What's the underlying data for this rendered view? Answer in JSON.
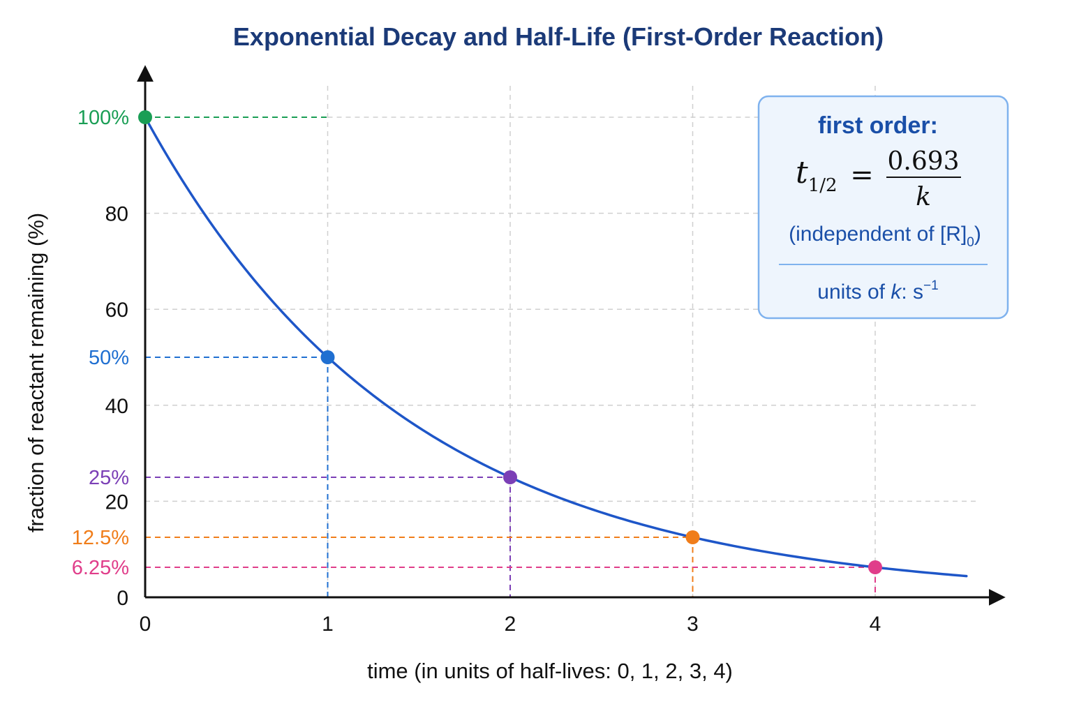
{
  "chart_data": {
    "type": "line",
    "title": "Exponential Decay and Half-Life (First-Order Reaction)",
    "xlabel": "time (in units of half-lives: 0, 1, 2, 3, 4)",
    "ylabel": "fraction of reactant remaining (%)",
    "xlim": [
      0,
      4.5
    ],
    "ylim": [
      0,
      110
    ],
    "x_ticks": [
      0,
      1,
      2,
      3,
      4
    ],
    "x_tick_labels": [
      "0",
      "1",
      "2",
      "3",
      "4"
    ],
    "y_ticks": [
      0,
      20,
      40,
      60,
      80
    ],
    "y_tick_labels": [
      "0",
      "20",
      "40",
      "60",
      "80"
    ],
    "grid": true,
    "series": [
      {
        "color": "#1e56c8",
        "x": [
          0,
          0.5,
          1,
          1.5,
          2,
          2.5,
          3,
          3.5,
          4,
          4.5
        ],
        "y": [
          100,
          70.7,
          50,
          35.4,
          25,
          17.7,
          12.5,
          8.8,
          6.25,
          4.4
        ]
      }
    ],
    "highlight_points": [
      {
        "x": 0,
        "y": 100,
        "label": "100%",
        "color": "#1a9e55"
      },
      {
        "x": 1,
        "y": 50,
        "label": "50%",
        "color": "#1f6fd1"
      },
      {
        "x": 2,
        "y": 25,
        "label": "25%",
        "color": "#7b3fb6"
      },
      {
        "x": 3,
        "y": 12.5,
        "label": "12.5%",
        "color": "#f07d1a"
      },
      {
        "x": 4,
        "y": 6.25,
        "label": "6.25%",
        "color": "#e03d8a"
      }
    ],
    "annotation_box": {
      "heading": "first order:",
      "formula_lhs_base": "t",
      "formula_lhs_sub": "1/2",
      "formula_eq": "=",
      "formula_num": "0.693",
      "formula_den": "k",
      "note_main": "(independent of [R]",
      "note_sub": "0",
      "note_close": ")",
      "units_prefix": "units of ",
      "units_k": "k",
      "units_suffix": ": s",
      "units_sup": "−1",
      "position": "top-right",
      "text_color": "#1a4fa8",
      "border_color": "#7fb2ee",
      "fill_color": "#eef5fd"
    },
    "title_color": "#1b3a78"
  }
}
